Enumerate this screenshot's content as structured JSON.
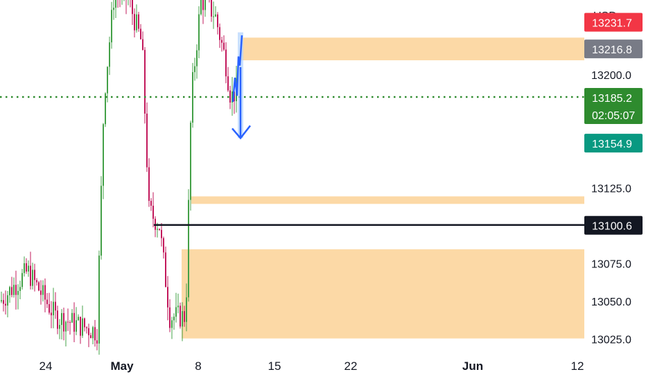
{
  "chart_data": {
    "type": "candlestick",
    "currency": "USD",
    "y_axis": {
      "ticks": [
        13200.0,
        13125.0,
        13075.0,
        13050.0,
        13025.0
      ],
      "tick_labels": [
        "13200.0",
        "13125.0",
        "13075.0",
        "13050.0",
        "13025.0"
      ],
      "range": [
        13020,
        13243
      ]
    },
    "x_axis": {
      "ticks": [
        {
          "label": "24",
          "bold": false
        },
        {
          "label": "May",
          "bold": true
        },
        {
          "label": "8",
          "bold": false
        },
        {
          "label": "15",
          "bold": false
        },
        {
          "label": "22",
          "bold": false
        },
        {
          "label": "Jun",
          "bold": true
        },
        {
          "label": "12",
          "bold": false
        }
      ]
    },
    "price_badges": [
      {
        "label": "13231.7",
        "value": 13231.7,
        "color": "#f23645",
        "role": "partially-hidden"
      },
      {
        "label": "13216.8",
        "value": 13216.8,
        "color": "#787b86",
        "role": "level"
      },
      {
        "label": "13185.2",
        "value": 13185.2,
        "sub": "02:05:07",
        "color": "#2e8b2e",
        "role": "last-price"
      },
      {
        "label": "13154.9",
        "value": 13154.9,
        "color": "#089981",
        "role": "level"
      },
      {
        "label": "13100.6",
        "value": 13100.6,
        "color": "#131722",
        "role": "level"
      }
    ],
    "zones": [
      {
        "from": 13209.5,
        "to": 13224.5,
        "color": "#fcd9a6"
      },
      {
        "from": 13114.5,
        "to": 13119.5,
        "color": "#fcd9a6"
      },
      {
        "from": 13025.5,
        "to": 13084.5,
        "color": "#fcd9a6"
      }
    ],
    "horizontal_lines": [
      {
        "value": 13185.2,
        "style": "dotted",
        "color": "#2e8b2e"
      },
      {
        "value": 13100.6,
        "style": "solid",
        "color": "#131722"
      }
    ],
    "projection_arrow": {
      "from": 13228.0,
      "to": 13158.0,
      "color": "#2962ff"
    },
    "colors": {
      "up": "#43a047",
      "down": "#c2185b",
      "zone": "#fcd9a6"
    }
  }
}
